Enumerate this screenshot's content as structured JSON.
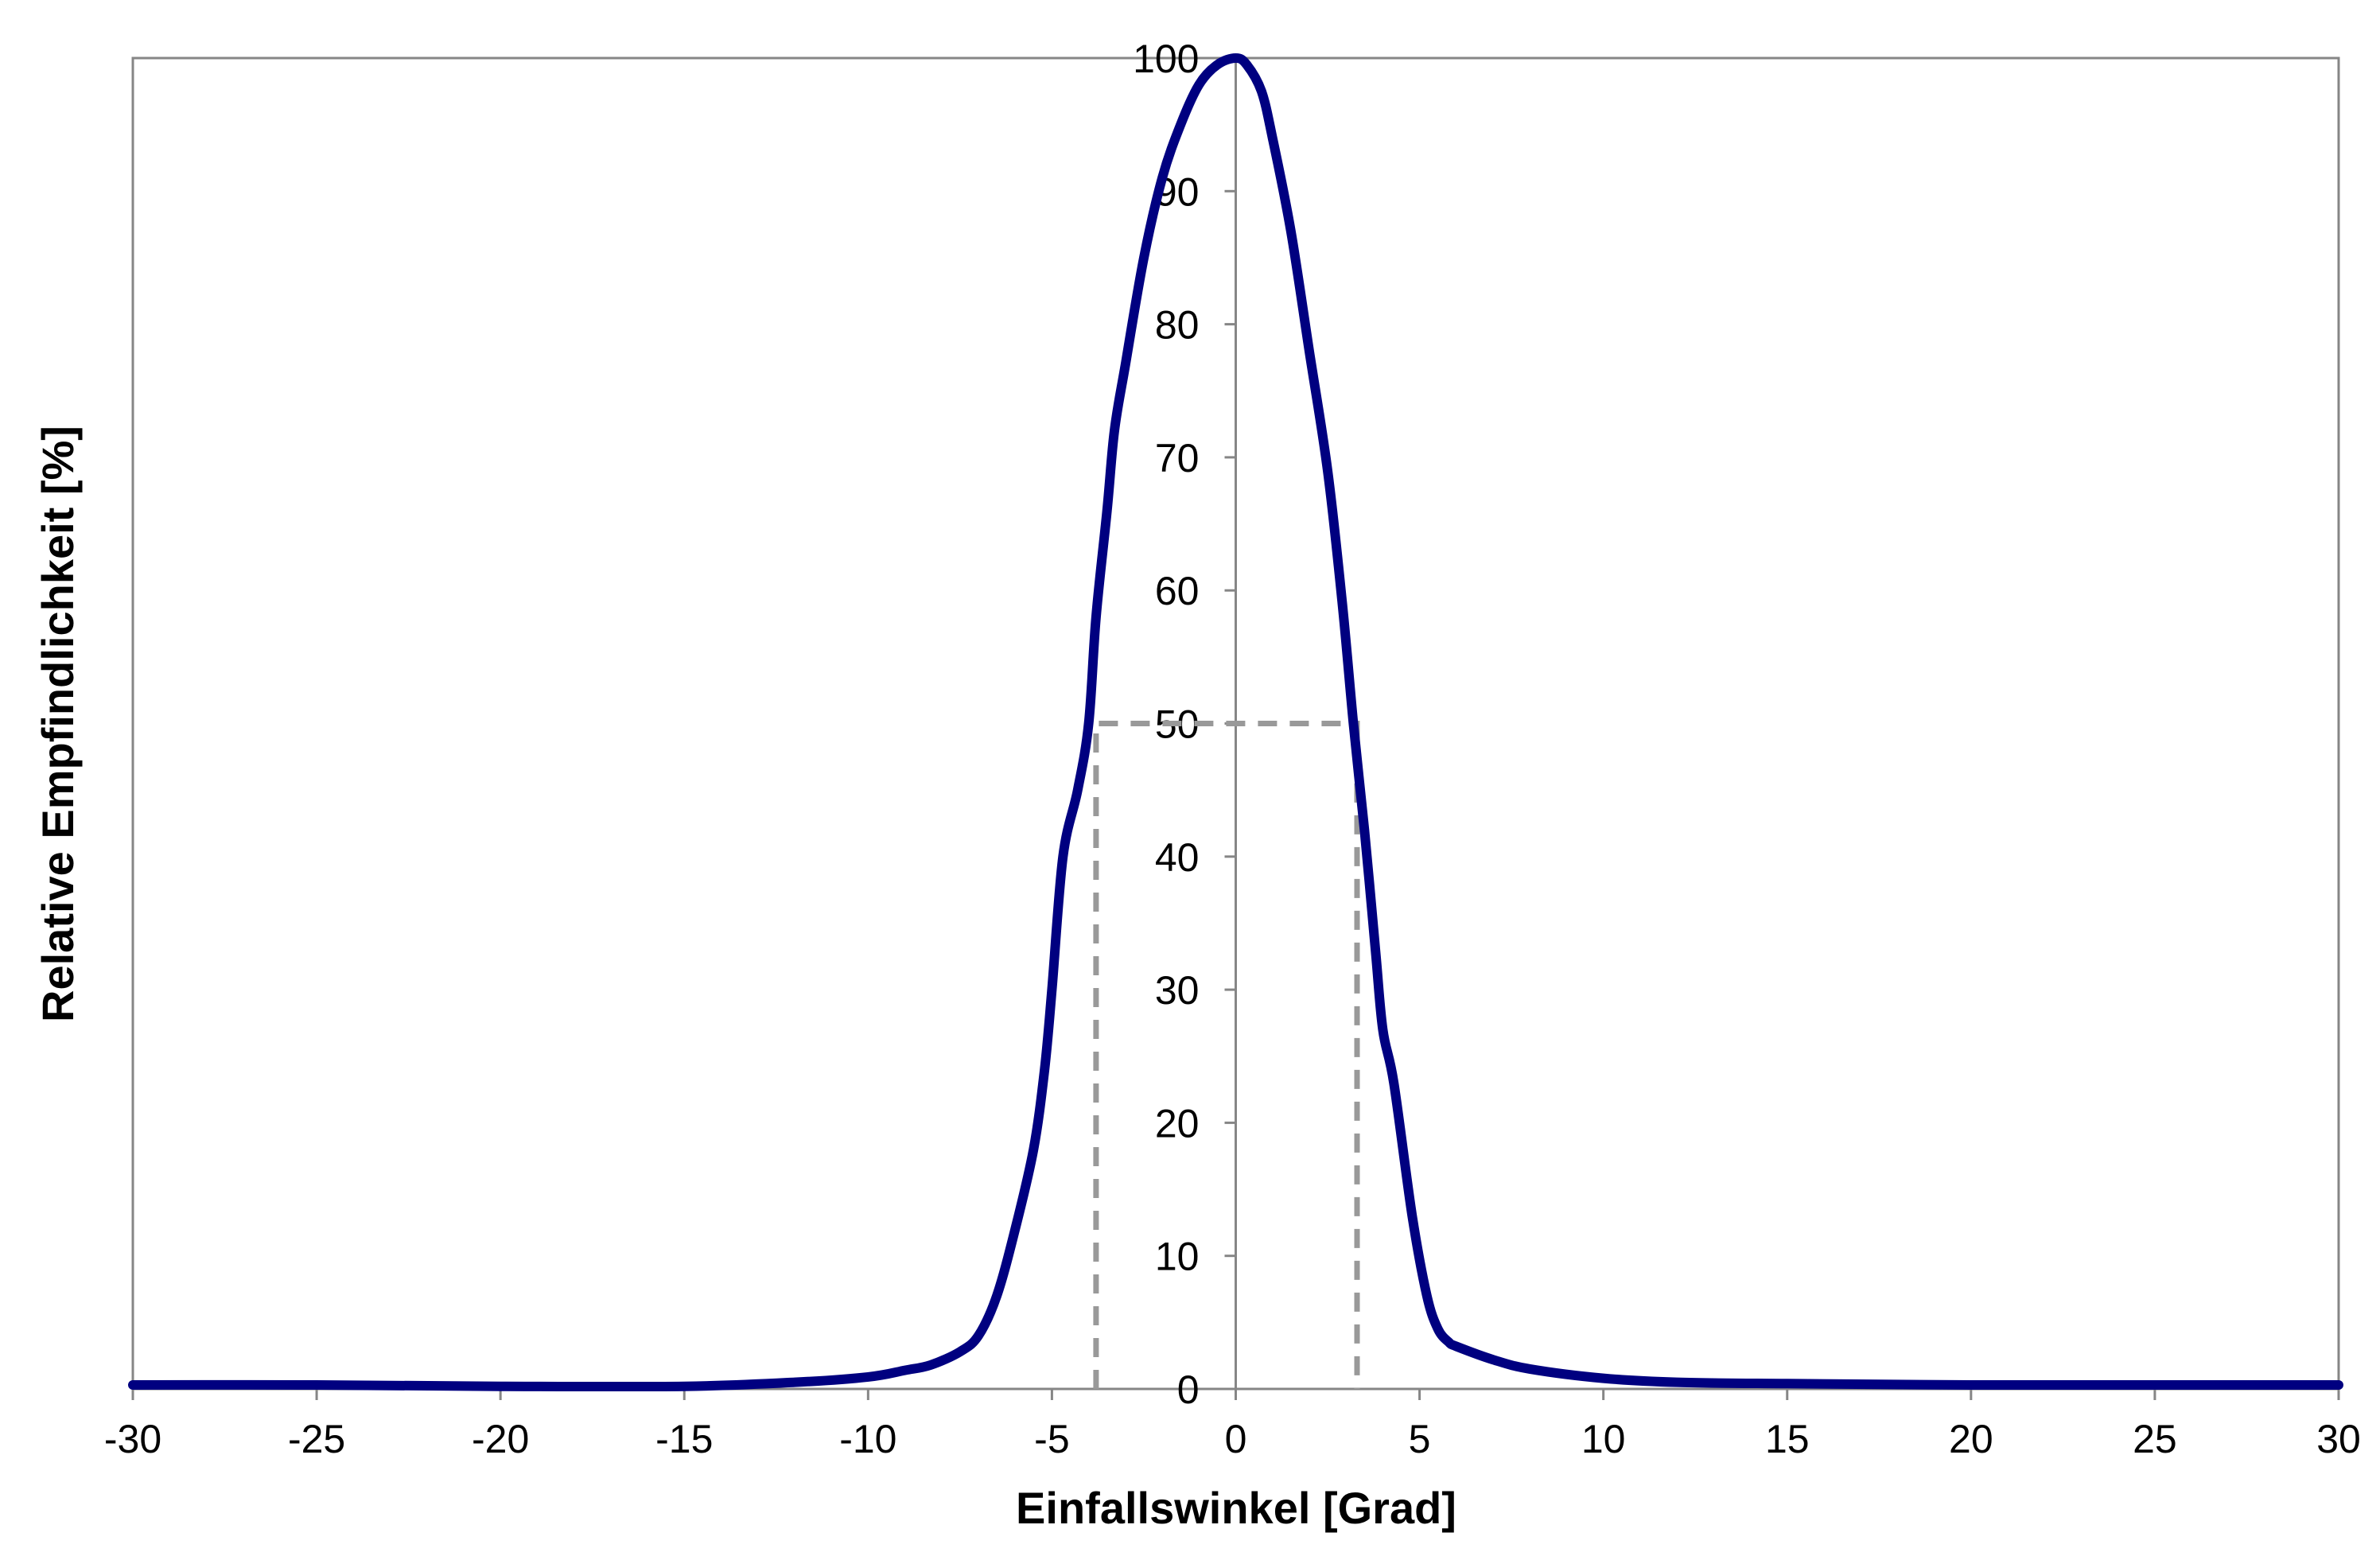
{
  "chart_data": {
    "type": "line",
    "title": "",
    "xlabel": "Einfallswinkel [Grad]",
    "ylabel": "Relative Empfindlichkeit [%]",
    "xlim": [
      -30,
      30
    ],
    "ylim": [
      0,
      100
    ],
    "x_ticks": [
      -30,
      -25,
      -20,
      -15,
      -10,
      -5,
      0,
      5,
      10,
      15,
      20,
      25,
      30
    ],
    "y_ticks": [
      0,
      10,
      20,
      30,
      40,
      50,
      60,
      70,
      80,
      90,
      100
    ],
    "x_tick_labels": [
      "-30",
      "-25",
      "-20",
      "-15",
      "-10",
      "-5",
      "0",
      "5",
      "10",
      "15",
      "20",
      "25",
      "30"
    ],
    "y_tick_labels": [
      "0",
      "10",
      "20",
      "30",
      "40",
      "50",
      "60",
      "70",
      "80",
      "90",
      "100"
    ],
    "grid": false,
    "legend": "none",
    "series": [
      {
        "color": "#000080",
        "x": [
          -30,
          -25,
          -20,
          -15,
          -12,
          -10,
          -9,
          -8.3,
          -7.5,
          -7,
          -6.5,
          -6,
          -5.5,
          -5.2,
          -5,
          -4.7,
          -4.3,
          -4,
          -3.8,
          -3.5,
          -3.3,
          -3,
          -2.5,
          -2,
          -1.5,
          -1,
          -0.5,
          0,
          0.3,
          0.7,
          1,
          1.5,
          2,
          2.5,
          2.9,
          3.2,
          3.5,
          3.8,
          4,
          4.3,
          4.8,
          5.2,
          5.5,
          5.8,
          6,
          7,
          8,
          10,
          12,
          15,
          20,
          25,
          30
        ],
        "y": [
          0.3,
          0.3,
          0.2,
          0.2,
          0.5,
          0.9,
          1.4,
          1.8,
          2.8,
          4,
          7,
          12,
          18,
          24,
          30,
          40,
          45,
          50,
          58,
          66,
          72,
          77,
          85,
          91,
          95,
          98,
          99.5,
          100,
          99.5,
          97.5,
          94,
          87,
          78,
          69,
          59,
          50,
          42,
          33,
          27,
          23,
          13,
          7,
          4.5,
          3.5,
          3.2,
          2.2,
          1.5,
          0.8,
          0.5,
          0.4,
          0.3,
          0.3,
          0.3
        ]
      }
    ],
    "annotations": [
      {
        "type": "dashed-guide",
        "color": "#999999",
        "x": [
          -3.8,
          -3.8,
          3.3,
          3.3
        ],
        "y": [
          0,
          50,
          50,
          0
        ]
      }
    ]
  }
}
